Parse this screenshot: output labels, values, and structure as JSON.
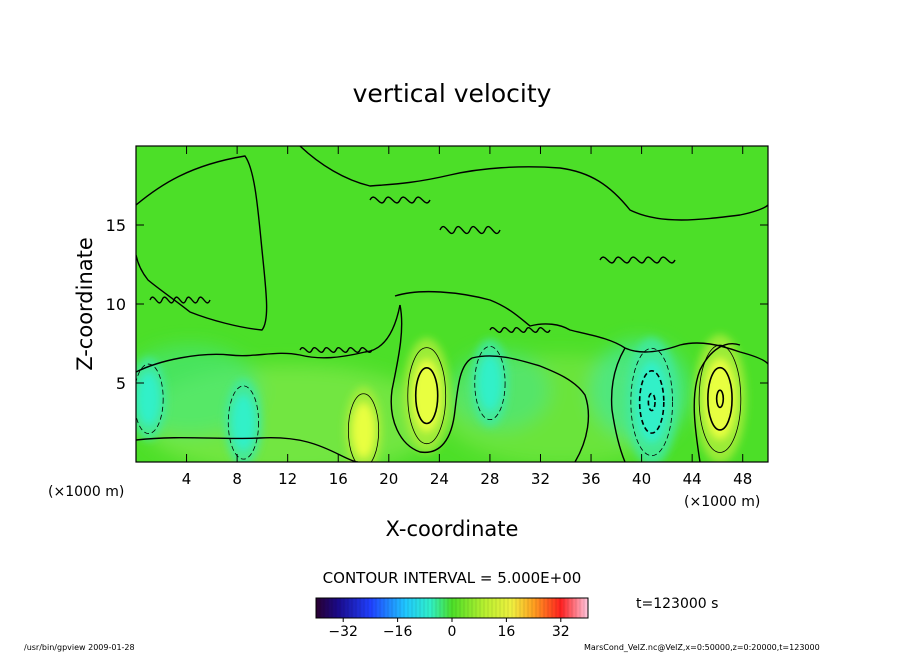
{
  "chart_data": {
    "type": "heatmap",
    "title": "vertical velocity",
    "xlabel": "X-coordinate",
    "ylabel": "Z-coordinate",
    "x_unit_left": "(×1000 m)",
    "x_unit_right": "(×1000 m)",
    "xlim": [
      0,
      50
    ],
    "ylim": [
      0,
      20
    ],
    "x_ticks": [
      "4",
      "8",
      "12",
      "16",
      "20",
      "24",
      "28",
      "32",
      "36",
      "40",
      "44",
      "48"
    ],
    "x_tick_values": [
      4,
      8,
      12,
      16,
      20,
      24,
      28,
      32,
      36,
      40,
      44,
      48
    ],
    "y_ticks": [
      "5",
      "10",
      "15"
    ],
    "y_tick_values": [
      5,
      10,
      15
    ],
    "contour_interval_text": "CONTOUR INTERVAL = 5.000E+00",
    "time_text": "t=123000 s",
    "colorbar": {
      "min": -40,
      "max": 40,
      "tick_labels": [
        "−32",
        "−16",
        "0",
        "16",
        "32"
      ],
      "tick_values": [
        -32,
        -16,
        0,
        16,
        32
      ]
    },
    "features": [
      {
        "kind": "updraft",
        "x": 23.0,
        "z": 4.2,
        "peak": 12
      },
      {
        "kind": "updraft",
        "x": 46.2,
        "z": 4.0,
        "peak": 15
      },
      {
        "kind": "updraft",
        "x": 18.0,
        "z": 2.0,
        "peak": 6
      },
      {
        "kind": "downdraft",
        "x": 40.8,
        "z": 3.8,
        "peak": -15
      },
      {
        "kind": "downdraft",
        "x": 28.0,
        "z": 5.0,
        "peak": -6
      },
      {
        "kind": "downdraft",
        "x": 8.5,
        "z": 2.5,
        "peak": -6
      },
      {
        "kind": "downdraft",
        "x": 1.0,
        "z": 4.0,
        "peak": -5
      }
    ],
    "grid": false
  },
  "footer": {
    "program": "/usr/bin/gpview   2009-01-28",
    "source": "MarsCond_VelZ.nc@VelZ,x=0:50000,z=0:20000,t=123000"
  },
  "colors": {
    "background_field": "#4cdf28",
    "updraft": "#e8ff40",
    "downdraft": "#30f0c8"
  }
}
